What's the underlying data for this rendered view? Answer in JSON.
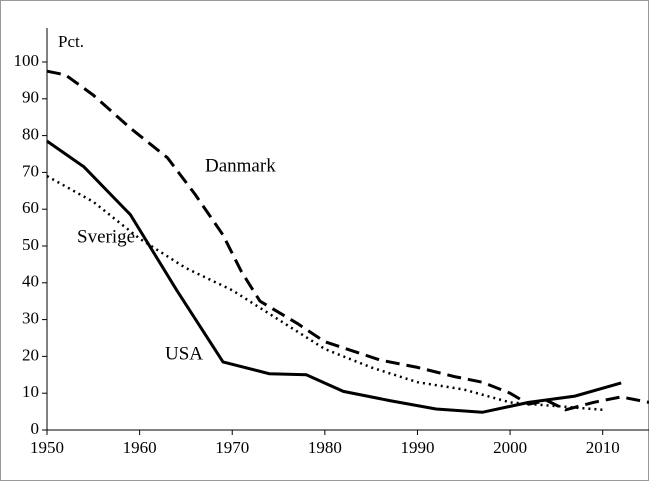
{
  "chart_data": {
    "type": "line",
    "y_unit_label": "Pct.",
    "xlim": [
      1950,
      2015
    ],
    "xticks": [
      1950,
      1960,
      1970,
      1980,
      1990,
      2000,
      2010
    ],
    "ylim": [
      0,
      100
    ],
    "yticks": [
      0,
      10,
      20,
      30,
      40,
      50,
      60,
      70,
      80,
      90,
      100
    ],
    "series": [
      {
        "name": "Danmark",
        "color": "#000000",
        "dash": "dashed",
        "x": [
          1950,
          1952,
          1955,
          1959,
          1963,
          1966,
          1969,
          1971,
          1973,
          1977,
          1980,
          1983,
          1986,
          1990,
          1994,
          1997,
          2000,
          2002,
          2004,
          2006,
          2009,
          2012,
          2015
        ],
        "values": [
          97.5,
          96.5,
          91,
          82,
          74,
          64,
          53,
          43,
          35,
          29,
          24,
          21.5,
          19,
          17,
          14.5,
          13,
          10,
          7,
          8,
          5.5,
          7.5,
          9,
          7.5
        ]
      },
      {
        "name": "Sverige",
        "color": "#000000",
        "dash": "dotted",
        "x": [
          1950,
          1955,
          1960,
          1965,
          1970,
          1975,
          1980,
          1985,
          1990,
          1995,
          2000,
          2005,
          2010
        ],
        "values": [
          69,
          62,
          52,
          44,
          38,
          30,
          22,
          17,
          13,
          11,
          7.5,
          6.5,
          5.5
        ]
      },
      {
        "name": "USA",
        "color": "#000000",
        "dash": "solid",
        "x": [
          1950,
          1954,
          1959,
          1964,
          1969,
          1974,
          1978,
          1982,
          1987,
          1992,
          1997,
          2002,
          2007,
          2012
        ],
        "values": [
          78.5,
          71.5,
          58.5,
          38,
          18.5,
          15.3,
          15,
          10.5,
          8,
          5.7,
          4.8,
          7.5,
          9.2,
          12.8
        ]
      }
    ]
  }
}
